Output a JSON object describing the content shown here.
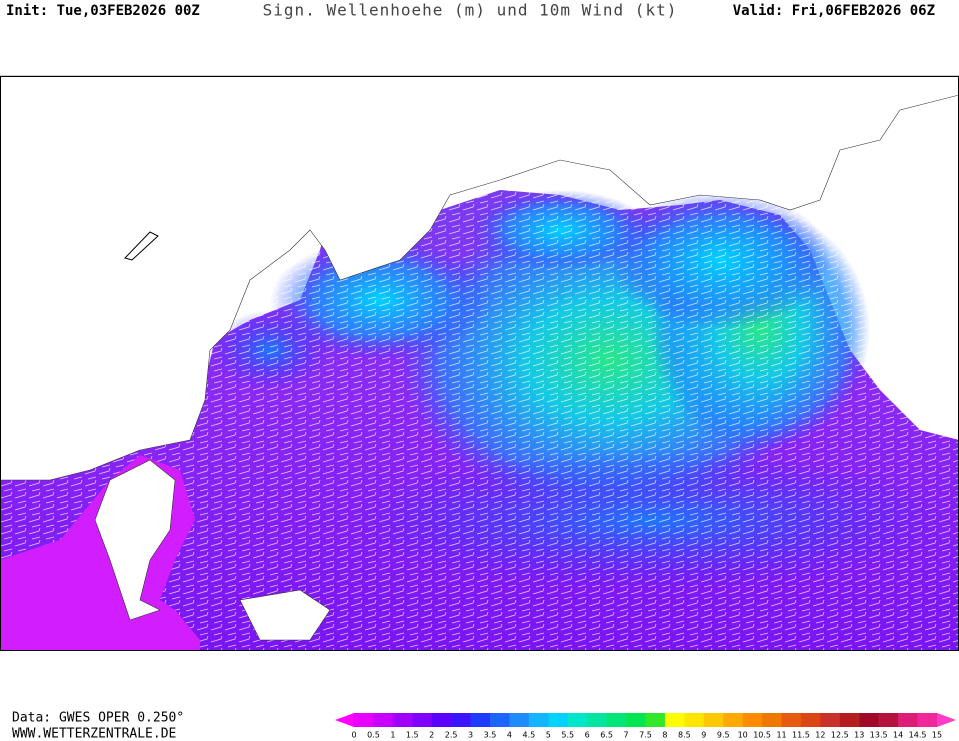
{
  "header": {
    "init": "Init: Tue,03FEB2026 00Z",
    "title": "Sign. Wellenhoehe (m) und 10m Wind (kt)",
    "valid": "Valid: Fri,06FEB2026 06Z"
  },
  "footer": {
    "source": "Data: GWES OPER 0.250°",
    "website": "WWW.WETTERZENTRALE.DE"
  },
  "colorbar": {
    "labels": [
      0,
      0.5,
      1,
      1.5,
      2,
      2.5,
      3,
      3.5,
      4,
      4.5,
      5,
      5.5,
      6,
      6.5,
      7,
      7.5,
      8,
      8.5,
      9,
      9.5,
      10,
      10.5,
      11,
      11.5,
      12,
      12.5,
      13,
      13.5,
      14,
      14.5,
      15
    ],
    "colors": [
      "#e600ff",
      "#c800ff",
      "#a000ff",
      "#8200ff",
      "#5a00ff",
      "#3c14ff",
      "#1e3cff",
      "#1e64ff",
      "#1e8cff",
      "#14b4ff",
      "#00d2ff",
      "#00e6c8",
      "#00e6a0",
      "#00e678",
      "#00e650",
      "#32e628",
      "#ffff00",
      "#ffe600",
      "#ffc800",
      "#ffaa00",
      "#ff8c00",
      "#f07800",
      "#e65a14",
      "#dc4614",
      "#c83228",
      "#b41e1e",
      "#a00a28",
      "#b4143c",
      "#dc1e78",
      "#f0289b"
    ],
    "under_color": "#ff00ff",
    "over_color": "#ff3cc8"
  }
}
